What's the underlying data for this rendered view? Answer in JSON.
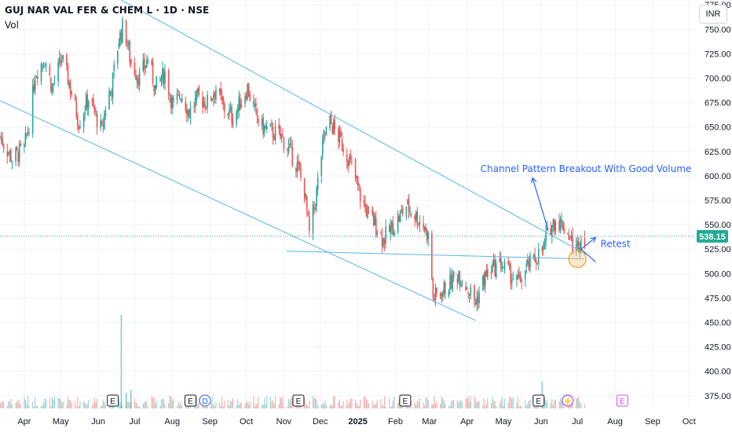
{
  "header": {
    "symbol_line": "GUJ NAR VAL FER & CHEM L · 1D · NSE",
    "vol_label": "Vol",
    "currency": "INR"
  },
  "colors": {
    "up": "#26a69a",
    "down": "#ef5350",
    "trendline": "#5bb4e8",
    "annotation": "#2962ff",
    "price_badge": "#22ab94",
    "grid": "#f0f3fa",
    "circle_fill": "#f6c26b",
    "circle_stroke": "#f0a030"
  },
  "chart_data": {
    "type": "candlestick",
    "ylim": [
      362,
      780
    ],
    "yticks": [
      375,
      400,
      425,
      450,
      475,
      500,
      525,
      550,
      575,
      600,
      625,
      650,
      675,
      700,
      725,
      750,
      775
    ],
    "ytick_labels": [
      "375.00",
      "400.00",
      "425.00",
      "450.00",
      "475.00",
      "500.00",
      "525.00",
      "550.00",
      "575.00",
      "600.00",
      "625.00",
      "650.00",
      "675.00",
      "700.00",
      "725.00",
      "750.00",
      "775.00"
    ],
    "xticks": [
      "Apr",
      "May",
      "Jun",
      "Jul",
      "Aug",
      "Sep",
      "Oct",
      "Nov",
      "Dec",
      "2025",
      "Feb",
      "Mar",
      "Apr",
      "May",
      "Jun",
      "Jul",
      "Aug",
      "Sep",
      "Oct"
    ],
    "xtick_dates": [
      "2024-04-01",
      "2024-05-01",
      "2024-06-01",
      "2024-07-01",
      "2024-08-01",
      "2024-09-01",
      "2024-10-01",
      "2024-11-01",
      "2024-12-01",
      "2025-01-01",
      "2025-02-01",
      "2025-03-01",
      "2025-04-01",
      "2025-05-01",
      "2025-06-01",
      "2025-07-01",
      "2025-08-01",
      "2025-09-01",
      "2025-10-01"
    ],
    "last_price": 538.15,
    "last_price_label": "538.15",
    "price_path": [
      [
        "2024-03-12",
        640
      ],
      [
        "2024-03-22",
        618
      ],
      [
        "2024-04-01",
        628
      ],
      [
        "2024-04-06",
        660
      ],
      [
        "2024-04-10",
        705
      ],
      [
        "2024-04-18",
        720
      ],
      [
        "2024-04-24",
        690
      ],
      [
        "2024-05-02",
        720
      ],
      [
        "2024-05-08",
        695
      ],
      [
        "2024-05-16",
        655
      ],
      [
        "2024-05-24",
        680
      ],
      [
        "2024-06-04",
        645
      ],
      [
        "2024-06-08",
        680
      ],
      [
        "2024-06-12",
        690
      ],
      [
        "2024-06-18",
        740
      ],
      [
        "2024-06-22",
        755
      ],
      [
        "2024-06-28",
        715
      ],
      [
        "2024-07-05",
        700
      ],
      [
        "2024-07-12",
        720
      ],
      [
        "2024-07-18",
        690
      ],
      [
        "2024-07-26",
        705
      ],
      [
        "2024-08-02",
        670
      ],
      [
        "2024-08-08",
        685
      ],
      [
        "2024-08-15",
        665
      ],
      [
        "2024-08-22",
        680
      ],
      [
        "2024-08-30",
        675
      ],
      [
        "2024-09-06",
        690
      ],
      [
        "2024-09-12",
        670
      ],
      [
        "2024-09-20",
        660
      ],
      [
        "2024-09-26",
        675
      ],
      [
        "2024-10-02",
        690
      ],
      [
        "2024-10-08",
        665
      ],
      [
        "2024-10-14",
        650
      ],
      [
        "2024-10-22",
        645
      ],
      [
        "2024-10-30",
        640
      ],
      [
        "2024-11-06",
        625
      ],
      [
        "2024-11-12",
        610
      ],
      [
        "2024-11-18",
        585
      ],
      [
        "2024-11-22",
        540
      ],
      [
        "2024-11-27",
        575
      ],
      [
        "2024-12-04",
        640
      ],
      [
        "2024-12-09",
        655
      ],
      [
        "2024-12-16",
        640
      ],
      [
        "2024-12-22",
        625
      ],
      [
        "2024-12-28",
        605
      ],
      [
        "2025-01-04",
        575
      ],
      [
        "2025-01-10",
        560
      ],
      [
        "2025-01-16",
        550
      ],
      [
        "2025-01-22",
        535
      ],
      [
        "2025-01-28",
        545
      ],
      [
        "2025-02-03",
        555
      ],
      [
        "2025-02-10",
        570
      ],
      [
        "2025-02-17",
        560
      ],
      [
        "2025-02-24",
        550
      ],
      [
        "2025-03-01",
        535
      ],
      [
        "2025-03-04",
        475
      ],
      [
        "2025-03-10",
        480
      ],
      [
        "2025-03-18",
        490
      ],
      [
        "2025-03-25",
        500
      ],
      [
        "2025-04-02",
        485
      ],
      [
        "2025-04-08",
        470
      ],
      [
        "2025-04-15",
        495
      ],
      [
        "2025-04-22",
        505
      ],
      [
        "2025-04-29",
        510
      ],
      [
        "2025-05-06",
        500
      ],
      [
        "2025-05-13",
        490
      ],
      [
        "2025-05-20",
        505
      ],
      [
        "2025-05-27",
        515
      ],
      [
        "2025-06-03",
        525
      ],
      [
        "2025-06-07",
        545
      ],
      [
        "2025-06-13",
        555
      ],
      [
        "2025-06-19",
        550
      ],
      [
        "2025-06-24",
        540
      ],
      [
        "2025-06-27",
        530
      ],
      [
        "2025-06-30",
        525
      ],
      [
        "2025-07-03",
        535
      ],
      [
        "2025-07-07",
        538.15
      ]
    ],
    "volume_spikes": [
      {
        "date": "2024-06-20",
        "relative": 0.92
      },
      {
        "date": "2024-06-24",
        "relative": 0.15
      },
      {
        "date": "2024-06-28",
        "relative": 0.18
      },
      {
        "date": "2025-06-02",
        "relative": 0.26
      }
    ],
    "trendlines": [
      {
        "name": "channel-upper",
        "from": {
          "date": "2024-06-20",
          "price": 780
        },
        "to": {
          "date": "2025-07-08",
          "price": 520
        }
      },
      {
        "name": "channel-lower",
        "from": {
          "date": "2024-03-12",
          "price": 677
        },
        "to": {
          "date": "2025-04-08",
          "price": 452
        }
      },
      {
        "name": "support-horizontal",
        "from": {
          "date": "2024-11-03",
          "price": 523
        },
        "to": {
          "date": "2025-07-06",
          "price": 515
        }
      }
    ],
    "events": [
      {
        "label": "E",
        "date": "2024-06-13",
        "color": "#131722"
      },
      {
        "label": "E",
        "date": "2024-08-16",
        "color": "#131722"
      },
      {
        "label": "D",
        "date": "2024-08-28",
        "color": "#2962ff"
      },
      {
        "label": "E",
        "date": "2024-11-13",
        "color": "#131722"
      },
      {
        "label": "E",
        "date": "2025-02-09",
        "color": "#131722"
      },
      {
        "label": "E",
        "date": "2025-05-30",
        "color": "#131722"
      },
      {
        "label": "⚡",
        "date": "2025-06-23",
        "color": "#9c27b0"
      },
      {
        "label": "E",
        "date": "2025-08-07",
        "color": "#e040fb"
      }
    ],
    "annotations": [
      {
        "text": "Channel Pattern Breakout With Good Volume"
      },
      {
        "text": "Retest"
      }
    ]
  }
}
